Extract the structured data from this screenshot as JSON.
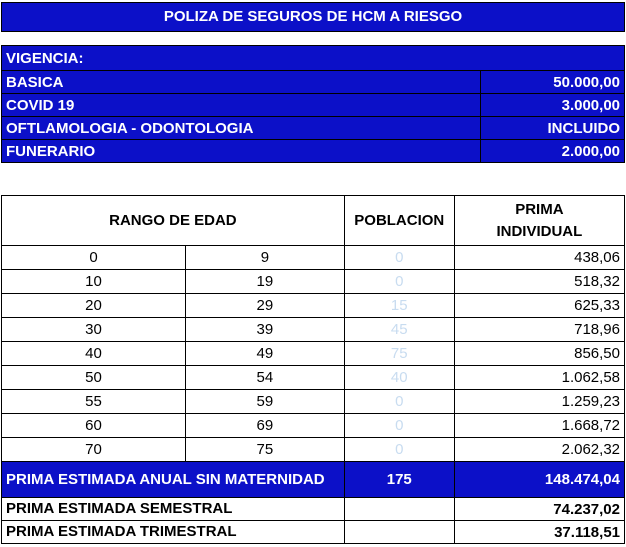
{
  "title": "POLIZA DE SEGUROS DE HCM A RIESGO",
  "vigencia_label": "VIGENCIA:",
  "coverages": [
    {
      "label": "BASICA",
      "value": "50.000,00"
    },
    {
      "label": "COVID 19",
      "value": "3.000,00"
    },
    {
      "label": "OFTLAMOLOGIA - ODONTOLOGIA",
      "value": "INCLUIDO"
    },
    {
      "label": "FUNERARIO",
      "value": "2.000,00"
    }
  ],
  "headers": {
    "age_range": "RANGO DE EDAD",
    "population": "POBLACION",
    "premium": "PRIMA INDIVIDUAL"
  },
  "rows": [
    {
      "from": "0",
      "to": "9",
      "population": "0",
      "premium": "438,06"
    },
    {
      "from": "10",
      "to": "19",
      "population": "0",
      "premium": "518,32"
    },
    {
      "from": "20",
      "to": "29",
      "population": "15",
      "premium": "625,33"
    },
    {
      "from": "30",
      "to": "39",
      "population": "45",
      "premium": "718,96"
    },
    {
      "from": "40",
      "to": "49",
      "population": "75",
      "premium": "856,50"
    },
    {
      "from": "50",
      "to": "54",
      "population": "40",
      "premium": "1.062,58"
    },
    {
      "from": "55",
      "to": "59",
      "population": "0",
      "premium": "1.259,23"
    },
    {
      "from": "60",
      "to": "69",
      "population": "0",
      "premium": "1.668,72"
    },
    {
      "from": "70",
      "to": "75",
      "population": "0",
      "premium": "2.062,32"
    }
  ],
  "totals": {
    "annual_label": "PRIMA ESTIMADA ANUAL SIN MATERNIDAD",
    "annual_population": "175",
    "annual_value": "148.474,04",
    "semester_label": "PRIMA ESTIMADA SEMESTRAL",
    "semester_value": "74.237,02",
    "quarter_label": "PRIMA ESTIMADA TRIMESTRAL",
    "quarter_value": "37.118,51"
  }
}
